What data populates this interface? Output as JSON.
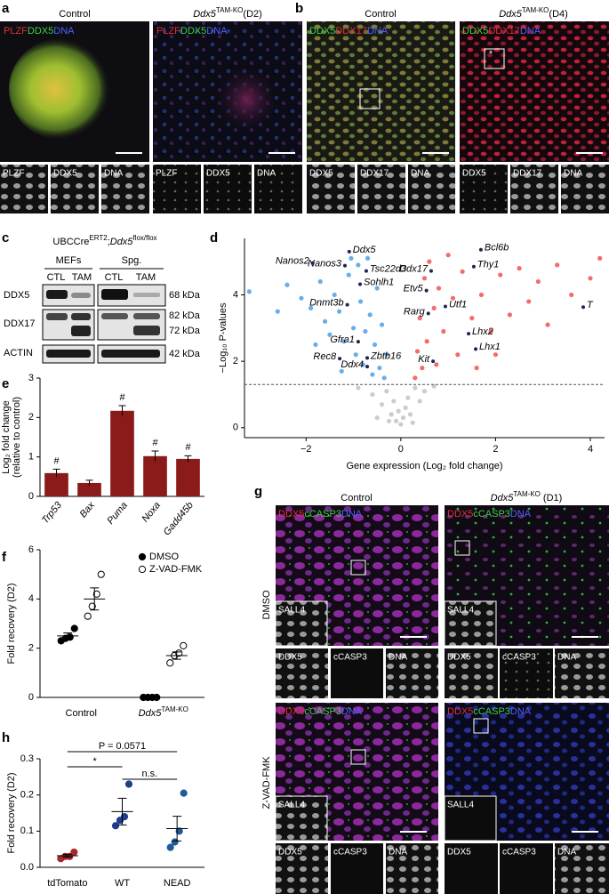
{
  "panel_labels": [
    "a",
    "b",
    "c",
    "d",
    "e",
    "f",
    "g",
    "h"
  ],
  "panel_a": {
    "title_control": "Control",
    "title_ko": {
      "gene": "Ddx5",
      "sup": "TAM-KO",
      "suffix": "(D2)"
    },
    "stains": [
      "PLZF",
      "DDX5",
      "DNA"
    ]
  },
  "panel_b": {
    "title_control": "Control",
    "title_ko": {
      "gene": "Ddx5",
      "sup": "TAM-KO",
      "suffix": "(D4)"
    },
    "stains": [
      "DDX5",
      "DDX17",
      "DNA"
    ],
    "asterisk": "*"
  },
  "panel_c": {
    "header": {
      "pre": "UBCCre",
      "sup1": "ERT2",
      "sep": ";",
      "gene": "Ddx5",
      "sup2": "flox/flox"
    },
    "groups": [
      "MEFs",
      "Spg."
    ],
    "lanes": [
      "CTL",
      "TAM"
    ],
    "rows": [
      "DDX5",
      "DDX17",
      "ACTIN"
    ],
    "sizes": [
      "68 kDa",
      "82 kDa",
      "72 kDa",
      "42 kDa"
    ]
  },
  "panel_g": {
    "title_control": "Control",
    "title_ko": {
      "gene": "Ddx5",
      "sup": "TAM-KO",
      "suffix": " (D1)"
    },
    "stains": [
      "DDX5",
      "cCASP3",
      "DNA"
    ],
    "inset": "SALL4",
    "conditions": [
      "DMSO",
      "Z-VAD-FMK"
    ]
  },
  "chart_data": [
    {
      "type": "scatter",
      "x_label": "Gene expression (Log₂ fold change)",
      "y_label": "−Log₁₀ P-values",
      "xlim": [
        -3.3,
        4.3
      ],
      "xticks": [
        {
          "value": -2,
          "label": "−2"
        },
        0,
        2,
        4
      ],
      "ylim": [
        -0.3,
        5.7
      ],
      "yticks": [
        0,
        2,
        4
      ],
      "threshold": 1.3,
      "threshold_color": "#555555",
      "series": [
        {
          "color": "#cccccc",
          "x": [
            -0.9,
            -0.6,
            -0.4,
            -0.3,
            -0.2,
            -0.15,
            -0.1,
            -0.05,
            0,
            0.05,
            0.1,
            0.15,
            0.2,
            0.3,
            0.4,
            0.5,
            0.7,
            -0.5,
            0.25,
            -0.25
          ],
          "y": [
            1.2,
            1.0,
            0.7,
            1.1,
            0.4,
            0.8,
            0.2,
            0.5,
            0.1,
            0.3,
            0.6,
            0.9,
            0.4,
            1.2,
            0.8,
            1.1,
            1.25,
            0.3,
            0.15,
            0.2
          ]
        },
        {
          "color": "#6aaee8",
          "x": [
            -3.2,
            -2.4,
            -2.1,
            -1.9,
            -1.7,
            -1.6,
            -1.5,
            -1.4,
            -1.3,
            -1.2,
            -1.1,
            -1.0,
            -0.95,
            -0.9,
            -0.85,
            -0.8,
            -0.75,
            -0.7,
            -0.65,
            -0.6,
            -0.55,
            -0.5,
            -0.45,
            -0.4,
            -0.35,
            -1.8,
            -2.6,
            -1.25,
            -0.3,
            -1.05
          ],
          "y": [
            4.1,
            4.3,
            3.9,
            3.6,
            4.4,
            3.2,
            2.8,
            4.0,
            3.5,
            2.6,
            4.6,
            3.0,
            2.2,
            4.9,
            3.8,
            1.9,
            2.9,
            5.1,
            3.4,
            1.6,
            2.5,
            4.2,
            1.8,
            3.1,
            1.5,
            2.5,
            3.5,
            1.7,
            2.2,
            5.1
          ]
        },
        {
          "color": "#f56a6a",
          "x": [
            0.3,
            0.35,
            0.4,
            0.45,
            0.5,
            0.55,
            0.6,
            0.7,
            0.75,
            0.8,
            0.9,
            1.0,
            1.1,
            1.2,
            1.3,
            1.5,
            1.6,
            1.7,
            1.9,
            2.1,
            2.3,
            2.5,
            2.7,
            2.9,
            3.1,
            3.3,
            3.6,
            4.0,
            4.2,
            2.0
          ],
          "y": [
            1.5,
            2.3,
            3.3,
            1.8,
            4.5,
            2.6,
            5.0,
            3.6,
            1.9,
            4.2,
            2.9,
            5.2,
            3.9,
            2.2,
            4.7,
            3.3,
            1.8,
            4.0,
            2.9,
            4.6,
            3.4,
            4.8,
            3.8,
            4.4,
            3.1,
            4.9,
            4.0,
            4.5,
            5.1,
            2.2
          ]
        }
      ],
      "annotation_color": "#1c2550",
      "annotations": [
        {
          "text": "Ddx5",
          "x": -1.09,
          "y": 5.3
        },
        {
          "text": "Nanos3",
          "x": -1.18,
          "y": 4.88
        },
        {
          "text": "Tsc22d3",
          "x": -0.73,
          "y": 4.72
        },
        {
          "text": "Sohlh1",
          "x": -0.86,
          "y": 4.32
        },
        {
          "text": "Nanos2",
          "x": -1.86,
          "y": 4.96
        },
        {
          "text": "Dnmt3b",
          "x": -1.13,
          "y": 3.7
        },
        {
          "text": "Gfra1",
          "x": -0.9,
          "y": 2.59
        },
        {
          "text": "Zbtb16",
          "x": -0.71,
          "y": 2.1
        },
        {
          "text": "Rec8",
          "x": -1.29,
          "y": 2.08
        },
        {
          "text": "Ddx4",
          "x": -0.71,
          "y": 1.84
        },
        {
          "text": "Ddx17",
          "x": 0.64,
          "y": 4.72
        },
        {
          "text": "Bcl6b",
          "x": 1.69,
          "y": 5.36
        },
        {
          "text": "Thy1",
          "x": 1.54,
          "y": 4.85
        },
        {
          "text": "Etv5",
          "x": 0.54,
          "y": 4.13
        },
        {
          "text": "Utf1",
          "x": 0.94,
          "y": 3.65
        },
        {
          "text": "Rarg",
          "x": 0.58,
          "y": 3.44
        },
        {
          "text": "T",
          "x": 3.85,
          "y": 3.63
        },
        {
          "text": "Lhx2",
          "x": 1.43,
          "y": 2.83
        },
        {
          "text": "Lhx1",
          "x": 1.58,
          "y": 2.37
        },
        {
          "text": "Kit",
          "x": 0.68,
          "y": 2.0
        }
      ]
    },
    {
      "type": "bar",
      "y_label": [
        "Log₂ fold change",
        "(relative to control)"
      ],
      "categories": [
        "Trp53",
        "Bax",
        "Puma",
        "Noxa",
        "Gadd45b"
      ],
      "values": [
        0.59,
        0.34,
        2.17,
        1.02,
        0.95
      ],
      "errors": [
        0.1,
        0.07,
        0.13,
        0.13,
        0.08
      ],
      "markers": [
        "#",
        null,
        "#",
        "#",
        "#"
      ],
      "color": "#8b1a1a",
      "ylim": [
        0,
        3
      ],
      "yticks": [
        0,
        1,
        2,
        3
      ]
    },
    {
      "type": "strip",
      "y_label": "Fold recovery (D2)",
      "categories": [
        "Control",
        {
          "gene": "Ddx5",
          "sup": "TAM-KO"
        }
      ],
      "ylim": [
        0,
        6
      ],
      "yticks": [
        0,
        2,
        4,
        6
      ],
      "legend": "upper right",
      "series": [
        {
          "name": "DMSO",
          "color": "#000000",
          "fill": "#000000",
          "groups": [
            [
              2.3,
              2.4,
              2.45,
              2.8
            ],
            [
              0,
              0,
              0,
              0
            ]
          ],
          "mean": [
            2.5,
            0
          ],
          "sem": [
            0.12,
            0
          ]
        },
        {
          "name": "Z-VAD-FMK",
          "color": "#000000",
          "fill": "#ffffff",
          "groups": [
            [
              3.3,
              3.7,
              4.2,
              5.0
            ],
            [
              1.4,
              1.7,
              1.8,
              2.1
            ]
          ],
          "mean": [
            4.0,
            1.7
          ],
          "sem": [
            0.45,
            0.15
          ]
        }
      ]
    },
    {
      "type": "strip",
      "y_label": "Fold recovery (D2)",
      "categories": [
        "tdTomato",
        "WT",
        "NEAD"
      ],
      "ylim": [
        0,
        0.3
      ],
      "yticks": [
        {
          "value": 0,
          "label": "0.0"
        },
        0.1,
        0.2,
        0.3
      ],
      "series": [
        {
          "colors": [
            "#a52a2a",
            "#1f3d8c",
            "#1f5a9a"
          ],
          "groups": [
            [
              0.024,
              0.03,
              0.03,
              0.042
            ],
            [
              0.115,
              0.13,
              0.14,
              0.23
            ],
            [
              0.055,
              0.07,
              0.1,
              0.205
            ]
          ],
          "mean": [
            0.032,
            0.154,
            0.107
          ],
          "sem": [
            0.004,
            0.037,
            0.034
          ]
        }
      ],
      "comparisons": [
        {
          "groups": [
            0,
            2
          ],
          "label": "P = 0.0571"
        },
        {
          "groups": [
            0,
            1
          ],
          "label": "*"
        },
        {
          "groups": [
            1,
            2
          ],
          "label": "n.s."
        }
      ]
    }
  ]
}
